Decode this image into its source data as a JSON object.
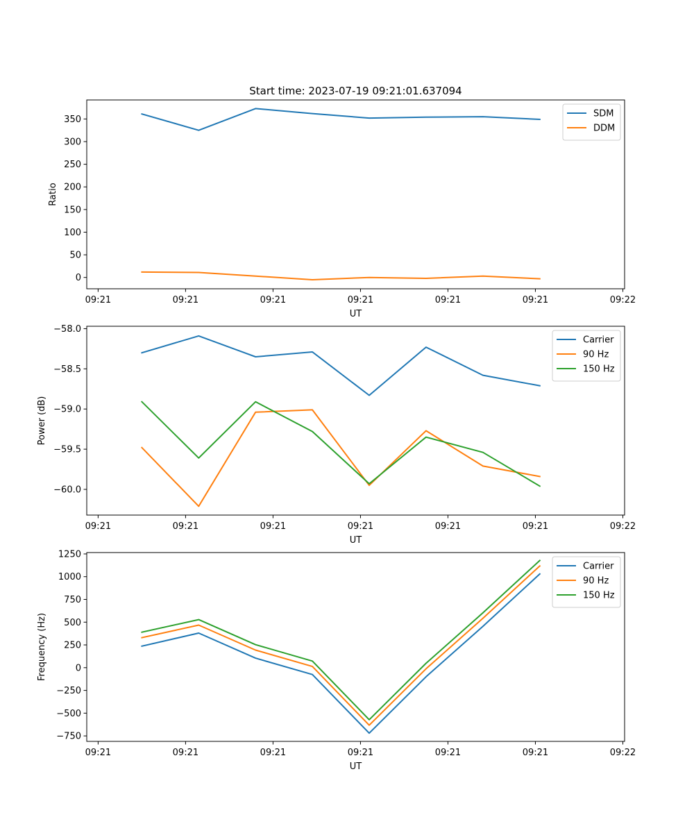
{
  "figure_title": "Start time: 2023-07-19 09:21:01.637094",
  "colors": {
    "blue": "#1f77b4",
    "orange": "#ff7f0e",
    "green": "#2ca02c"
  },
  "chart_data": [
    {
      "type": "line",
      "title": "Start time: 2023-07-19 09:21:01.637094",
      "xlabel": "UT",
      "ylabel": "Ratio",
      "x": [
        0.5,
        1.15,
        1.8,
        2.45,
        3.1,
        3.75,
        4.4,
        5.05
      ],
      "xlim": [
        -0.13,
        6.02
      ],
      "xticks": [
        0,
        1,
        2,
        3,
        4,
        5,
        6
      ],
      "xticklabels": [
        "09:21",
        "09:21",
        "09:21",
        "09:21",
        "09:21",
        "09:21",
        "09:22"
      ],
      "ylim": [
        -25,
        392
      ],
      "yticks": [
        0,
        50,
        100,
        150,
        200,
        250,
        300,
        350
      ],
      "yticklabels": [
        "0",
        "50",
        "100",
        "150",
        "200",
        "250",
        "300",
        "350"
      ],
      "legend_position": "top-right",
      "series": [
        {
          "name": "SDM",
          "color": "#1f77b4",
          "values": [
            361,
            325,
            373,
            362,
            352,
            354,
            355,
            349
          ]
        },
        {
          "name": "DDM",
          "color": "#ff7f0e",
          "values": [
            12,
            11,
            3,
            -5,
            0,
            -2,
            3,
            -3
          ]
        }
      ]
    },
    {
      "type": "line",
      "title": "",
      "xlabel": "UT",
      "ylabel": "Power (dB)",
      "x": [
        0.5,
        1.15,
        1.8,
        2.45,
        3.1,
        3.75,
        4.4,
        5.05
      ],
      "xlim": [
        -0.13,
        6.02
      ],
      "xticks": [
        0,
        1,
        2,
        3,
        4,
        5,
        6
      ],
      "xticklabels": [
        "09:21",
        "09:21",
        "09:21",
        "09:21",
        "09:21",
        "09:21",
        "09:22"
      ],
      "ylim": [
        -60.32,
        -57.97
      ],
      "yticks": [
        -60.0,
        -59.5,
        -59.0,
        -58.5,
        -58.0
      ],
      "yticklabels": [
        "−60.0",
        "−59.5",
        "−59.0",
        "−58.5",
        "−58.0"
      ],
      "legend_position": "top-right",
      "series": [
        {
          "name": "Carrier",
          "color": "#1f77b4",
          "values": [
            -58.3,
            -58.09,
            -58.35,
            -58.29,
            -58.83,
            -58.23,
            -58.58,
            -58.71
          ]
        },
        {
          "name": "90 Hz",
          "color": "#ff7f0e",
          "values": [
            -59.48,
            -60.21,
            -59.04,
            -59.01,
            -59.95,
            -59.27,
            -59.71,
            -59.84
          ]
        },
        {
          "name": "150 Hz",
          "color": "#2ca02c",
          "values": [
            -58.91,
            -59.61,
            -58.91,
            -59.28,
            -59.93,
            -59.35,
            -59.54,
            -59.96
          ]
        }
      ]
    },
    {
      "type": "line",
      "title": "",
      "xlabel": "UT",
      "ylabel": "Frequency (Hz)",
      "x": [
        0.5,
        1.15,
        1.8,
        2.45,
        3.1,
        3.75,
        4.4,
        5.05
      ],
      "xlim": [
        -0.13,
        6.02
      ],
      "xticks": [
        0,
        1,
        2,
        3,
        4,
        5,
        6
      ],
      "xticklabels": [
        "09:21",
        "09:21",
        "09:21",
        "09:21",
        "09:21",
        "09:21",
        "09:22"
      ],
      "ylim": [
        -810,
        1265
      ],
      "yticks": [
        -750,
        -500,
        -250,
        0,
        250,
        500,
        750,
        1000,
        1250
      ],
      "yticklabels": [
        "−750",
        "−500",
        "−250",
        "0",
        "250",
        "500",
        "750",
        "1000",
        "1250"
      ],
      "legend_position": "top-right",
      "series": [
        {
          "name": "Carrier",
          "color": "#1f77b4",
          "values": [
            237,
            380,
            105,
            -75,
            -720,
            -100,
            455,
            1030
          ]
        },
        {
          "name": "90 Hz",
          "color": "#ff7f0e",
          "values": [
            330,
            468,
            193,
            13,
            -632,
            -12,
            543,
            1118
          ]
        },
        {
          "name": "150 Hz",
          "color": "#2ca02c",
          "values": [
            390,
            528,
            253,
            73,
            -572,
            48,
            603,
            1178
          ]
        }
      ]
    }
  ]
}
